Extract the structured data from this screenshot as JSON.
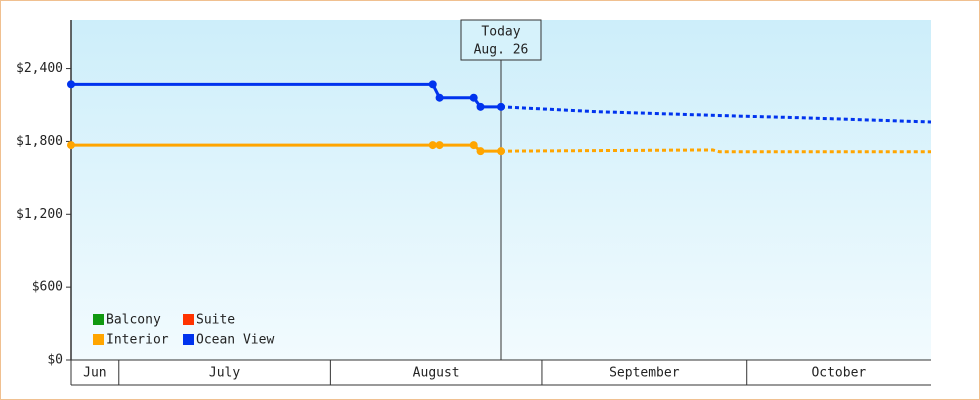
{
  "chart_data": {
    "type": "line",
    "xlim": [
      0,
      126
    ],
    "xticks": [
      7,
      38,
      69,
      99
    ],
    "month_labels": [
      "Jun",
      "July",
      "August",
      "September",
      "October"
    ],
    "ylim": [
      0,
      2800
    ],
    "yticks": [
      {
        "value": 0,
        "label": "$0"
      },
      {
        "value": 600,
        "label": "$600"
      },
      {
        "value": 1200,
        "label": "$1,200"
      },
      {
        "value": 1800,
        "label": "$1,800"
      },
      {
        "value": 2400,
        "label": "$2,400"
      }
    ],
    "annotation": {
      "label": "Today",
      "date": "Aug. 26",
      "x": 63
    },
    "legend": "lower-left",
    "series": [
      {
        "name": "Balcony",
        "color": "#119911",
        "x": [],
        "values": [],
        "forecast_x": [],
        "forecast_values": []
      },
      {
        "name": "Suite",
        "color": "#ff3300",
        "x": [],
        "values": [],
        "forecast_x": [],
        "forecast_values": []
      },
      {
        "name": "Interior",
        "color": "#ffa500",
        "x": [
          0,
          53,
          54,
          59,
          60,
          63
        ],
        "values": [
          1770,
          1770,
          1770,
          1770,
          1720,
          1720
        ],
        "forecast_x": [
          63,
          94,
          95,
          126
        ],
        "forecast_values": [
          1720,
          1730,
          1715,
          1715
        ]
      },
      {
        "name": "Ocean View",
        "color": "#0033ee",
        "x": [
          0,
          53,
          54,
          59,
          60,
          63
        ],
        "values": [
          2270,
          2270,
          2160,
          2160,
          2085,
          2085
        ],
        "forecast_x": [
          63,
          77,
          97,
          107,
          126
        ],
        "forecast_values": [
          2085,
          2045,
          2010,
          1995,
          1960
        ]
      }
    ]
  }
}
